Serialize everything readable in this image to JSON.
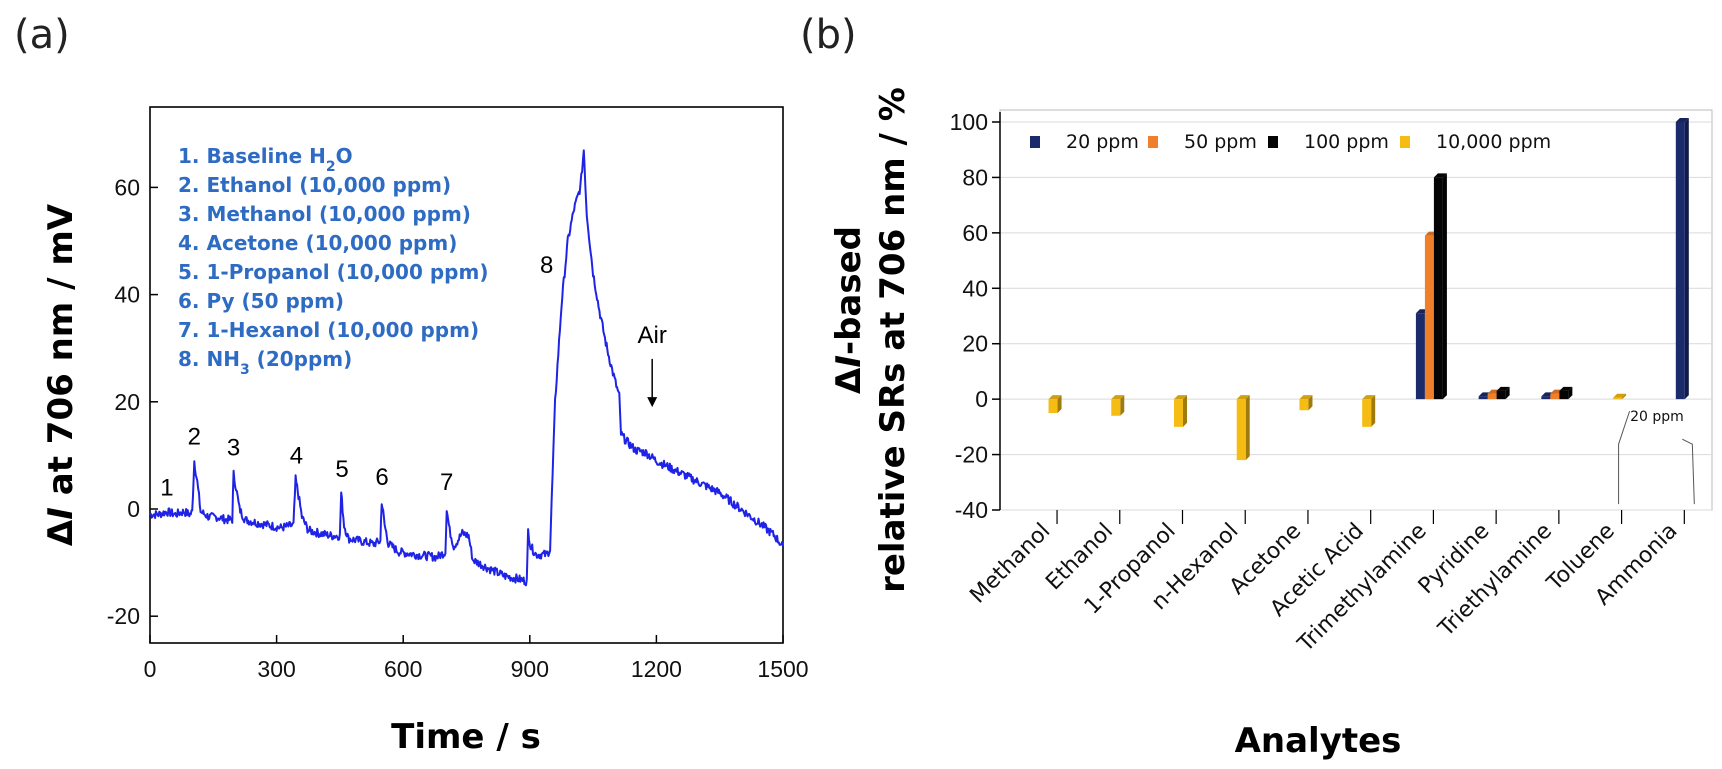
{
  "chart_data": [
    {
      "id": "a",
      "type": "line",
      "panel_label": "(a)",
      "xlabel": "Time / s",
      "ylabel_italic": "I",
      "ylabel_prefix": "Δ",
      "ylabel_suffix": " at 706 nm / mV",
      "xlim": [
        0,
        1500
      ],
      "ylim": [
        -25,
        75
      ],
      "xticks": [
        0,
        300,
        600,
        900,
        1200,
        1500
      ],
      "yticks": [
        -20,
        0,
        20,
        40,
        60
      ],
      "line_color": "#1f23e6",
      "series": [
        {
          "name": "ΔI",
          "points": [
            [
              0,
              -1
            ],
            [
              20,
              -1
            ],
            [
              40,
              -0.5
            ],
            [
              60,
              -1
            ],
            [
              80,
              -0.5
            ],
            [
              95,
              -1
            ],
            [
              100,
              -0.5
            ],
            [
              105,
              9
            ],
            [
              112,
              5
            ],
            [
              120,
              -0.5
            ],
            [
              140,
              -1.5
            ],
            [
              160,
              -1.5
            ],
            [
              180,
              -2
            ],
            [
              195,
              -2
            ],
            [
              198,
              6.5
            ],
            [
              204,
              4
            ],
            [
              212,
              0
            ],
            [
              225,
              -2
            ],
            [
              250,
              -2.5
            ],
            [
              280,
              -3
            ],
            [
              310,
              -3.5
            ],
            [
              340,
              -3
            ],
            [
              345,
              5.5
            ],
            [
              352,
              2.5
            ],
            [
              360,
              -1.5
            ],
            [
              375,
              -4
            ],
            [
              400,
              -4.5
            ],
            [
              430,
              -5
            ],
            [
              450,
              -5
            ],
            [
              453,
              3
            ],
            [
              460,
              -3
            ],
            [
              470,
              -5.5
            ],
            [
              500,
              -6
            ],
            [
              530,
              -6.5
            ],
            [
              546,
              -6
            ],
            [
              549,
              1.5
            ],
            [
              556,
              -3
            ],
            [
              565,
              -6.5
            ],
            [
              590,
              -8
            ],
            [
              630,
              -8.5
            ],
            [
              680,
              -9
            ],
            [
              700,
              -8
            ],
            [
              703,
              0
            ],
            [
              710,
              -4
            ],
            [
              720,
              -7
            ],
            [
              740,
              -4.5
            ],
            [
              755,
              -5
            ],
            [
              765,
              -9.5
            ],
            [
              800,
              -11
            ],
            [
              840,
              -12.5
            ],
            [
              870,
              -13
            ],
            [
              893,
              -13.5
            ],
            [
              896,
              -4
            ],
            [
              902,
              -7
            ],
            [
              915,
              -8.5
            ],
            [
              940,
              -8.5
            ],
            [
              948,
              -7.5
            ],
            [
              960,
              20
            ],
            [
              975,
              38
            ],
            [
              990,
              50
            ],
            [
              1005,
              56
            ],
            [
              1020,
              60
            ],
            [
              1028,
              67
            ],
            [
              1035,
              55
            ],
            [
              1050,
              44
            ],
            [
              1065,
              37
            ],
            [
              1080,
              31
            ],
            [
              1095,
              26
            ],
            [
              1105,
              23
            ],
            [
              1112,
              21
            ],
            [
              1116,
              14
            ],
            [
              1125,
              13
            ],
            [
              1150,
              11
            ],
            [
              1175,
              10.5
            ],
            [
              1200,
              9
            ],
            [
              1250,
              7
            ],
            [
              1300,
              5
            ],
            [
              1350,
              3
            ],
            [
              1400,
              0
            ],
            [
              1450,
              -3
            ],
            [
              1480,
              -5
            ],
            [
              1500,
              -7
            ]
          ]
        }
      ],
      "peak_labels": [
        {
          "label": "1",
          "x": 40,
          "y": 2.5
        },
        {
          "label": "2",
          "x": 105,
          "y": 12
        },
        {
          "label": "3",
          "x": 198,
          "y": 10
        },
        {
          "label": "4",
          "x": 347,
          "y": 8.5
        },
        {
          "label": "5",
          "x": 455,
          "y": 6
        },
        {
          "label": "6",
          "x": 550,
          "y": 4.5
        },
        {
          "label": "7",
          "x": 703,
          "y": 3.5
        },
        {
          "label": "8",
          "x": 940,
          "y": 44
        }
      ],
      "annotation": {
        "text": "Air",
        "x": 1190,
        "y": 31,
        "arrow_from": [
          1190,
          28
        ],
        "arrow_to": [
          1190,
          19
        ]
      },
      "legend": [
        {
          "num": "1.",
          "text": "Baseline H",
          "sub": "2",
          "tail": "O"
        },
        {
          "num": "2.",
          "text": "Ethanol (10,000 ppm)",
          "sub": "",
          "tail": ""
        },
        {
          "num": "3.",
          "text": "Methanol (10,000 ppm)",
          "sub": "",
          "tail": ""
        },
        {
          "num": "4.",
          "text": "Acetone (10,000 ppm)",
          "sub": "",
          "tail": ""
        },
        {
          "num": "5.",
          "text": "1-Propanol (10,000 ppm)",
          "sub": "",
          "tail": ""
        },
        {
          "num": "6.",
          "text": "Py (50 ppm)",
          "sub": "",
          "tail": ""
        },
        {
          "num": "7.",
          "text": "1-Hexanol (10,000 ppm)",
          "sub": "",
          "tail": ""
        },
        {
          "num": "8.",
          "text": "NH",
          "sub": "3",
          "tail": " (20ppm)"
        }
      ]
    },
    {
      "id": "b",
      "type": "bar",
      "panel_label": "(b)",
      "xlabel": "Analytes",
      "ylabel_line1_prefix": "Δ",
      "ylabel_line1_italic": "I",
      "ylabel_line1_suffix": "-based",
      "ylabel_line2": "relative SRs at 706 nm / %",
      "ylim": [
        -40,
        100
      ],
      "yticks": [
        -40,
        -20,
        0,
        20,
        40,
        60,
        80,
        100
      ],
      "categories": [
        "Methanol",
        "Ethanol",
        "1-Propanol",
        "n-Hexanol",
        "Acetone",
        "Acetic Acid",
        "Trimethylamine",
        "Pyridine",
        "Triethylamine",
        "Toluene",
        "Ammonia"
      ],
      "series": [
        {
          "name": "20 ppm",
          "color": "#1b2a6b",
          "values": [
            null,
            null,
            null,
            null,
            null,
            null,
            31,
            1,
            1,
            null,
            100
          ]
        },
        {
          "name": "50 ppm",
          "color": "#f07f2a",
          "values": [
            null,
            null,
            null,
            null,
            null,
            null,
            59,
            2,
            2,
            null,
            null
          ]
        },
        {
          "name": "100 ppm",
          "color": "#050505",
          "values": [
            null,
            null,
            null,
            null,
            null,
            null,
            80,
            3,
            3,
            null,
            null
          ]
        },
        {
          "name": "10,000 ppm",
          "color": "#f5bc14",
          "values": [
            -5,
            -6,
            -10,
            -22,
            -4,
            -10,
            null,
            null,
            null,
            0.5,
            null
          ]
        }
      ],
      "note": "20 ppm"
    }
  ]
}
